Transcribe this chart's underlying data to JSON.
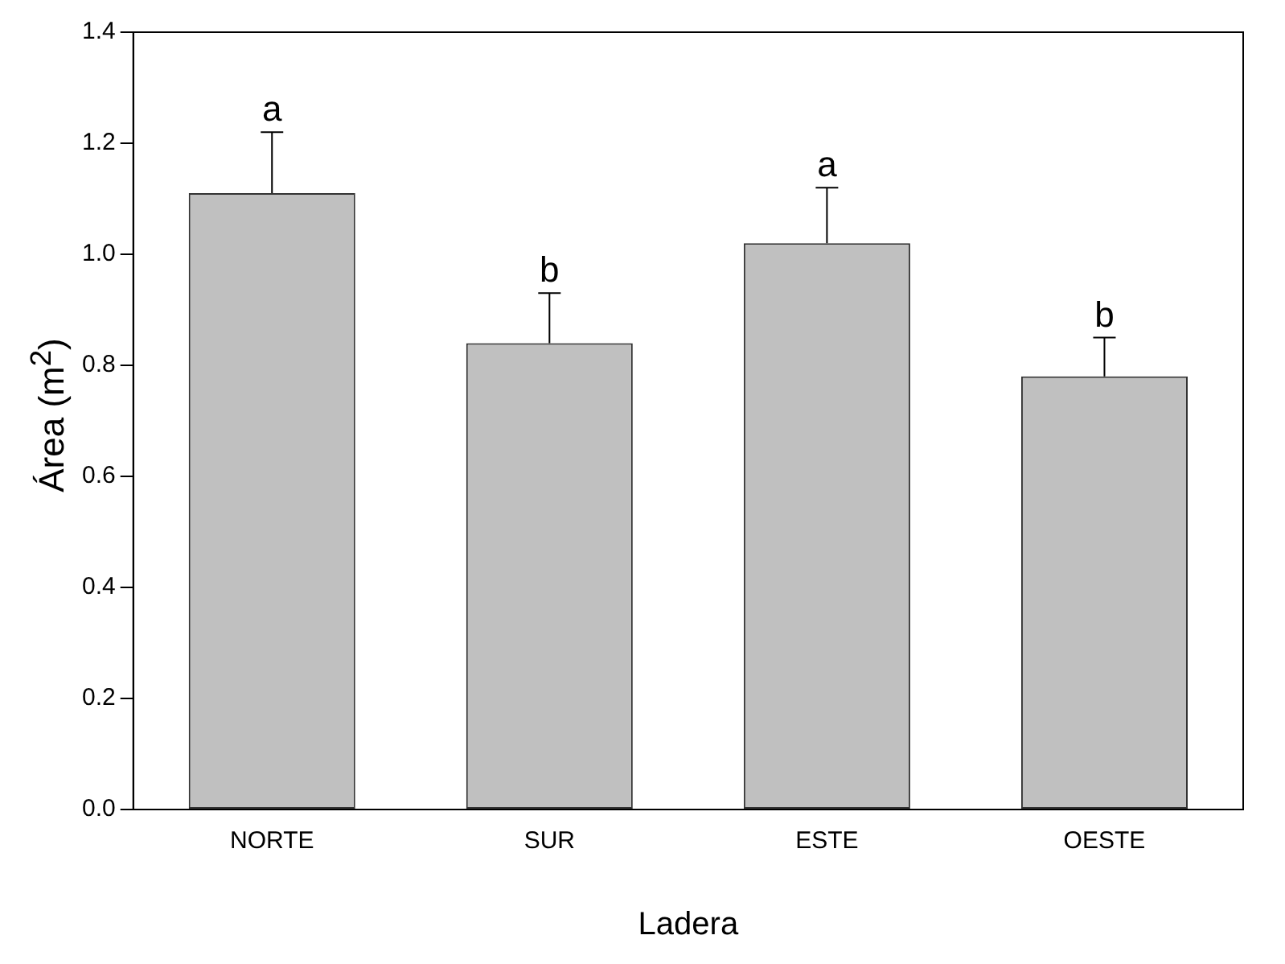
{
  "chart_data": {
    "type": "bar",
    "xlabel": "Ladera",
    "ylabel": "Área (m$^{2}$)",
    "categories": [
      "NORTE",
      "SUR",
      "ESTE",
      "OESTE"
    ],
    "values": [
      1.11,
      0.84,
      1.02,
      0.78
    ],
    "errors": [
      [
        1.11,
        1.22
      ],
      [
        0.84,
        0.93
      ],
      [
        1.02,
        1.12
      ],
      [
        0.78,
        0.85
      ]
    ],
    "color": "#c0c0c0",
    "ylim": [
      0,
      1.4
    ],
    "yticks": [
      {
        "value": 0,
        "label": "0.0"
      },
      0.2,
      0.4,
      0.6,
      0.8,
      {
        "value": 1,
        "label": "1.0"
      },
      1.2,
      1.4
    ],
    "annotations": [
      "a",
      "b",
      "a",
      "b"
    ],
    "grid": false,
    "legend": false
  }
}
